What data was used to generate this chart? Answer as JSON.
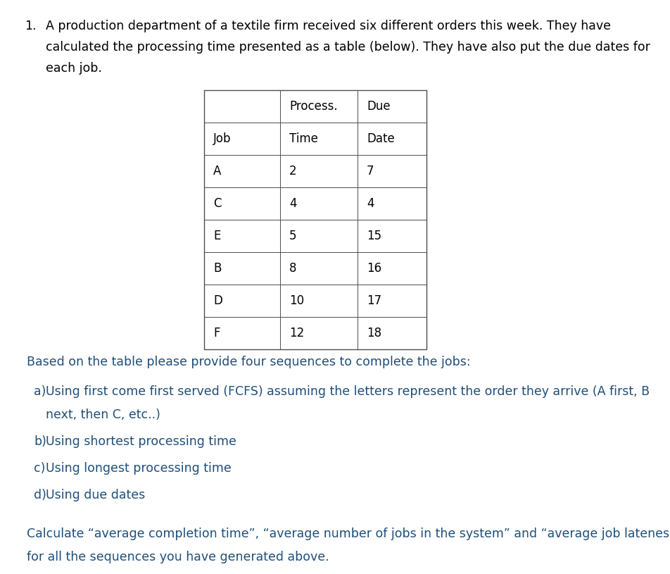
{
  "background_color": "#ffffff",
  "text_color_black": "#000000",
  "text_color_blue": "#1F4E79",
  "figsize": [
    9.52,
    8.15
  ],
  "dpi": 100,
  "number_prefix": "1.",
  "para1_line1": "A production department of a textile firm received six different orders this week. They have",
  "para1_line2": "calculated the processing time presented as a table (below). They have also put the due dates for",
  "para1_line3": "each job.",
  "table_headers_row1": [
    "",
    "Process.",
    "Due"
  ],
  "table_headers_row2": [
    "Job",
    "Time",
    "Date"
  ],
  "table_data": [
    [
      "A",
      "2",
      "7"
    ],
    [
      "C",
      "4",
      "4"
    ],
    [
      "E",
      "5",
      "15"
    ],
    [
      "B",
      "8",
      "16"
    ],
    [
      "D",
      "10",
      "17"
    ],
    [
      "F",
      "12",
      "18"
    ]
  ],
  "para2": "Based on the table please provide four sequences to complete the jobs:",
  "item_a1": "a)   Using first come first served (FCFS) assuming the letters represent the order they arrive (A first, B",
  "item_a2": "      next, then C, etc..)",
  "item_b": "b)   Using shortest processing time",
  "item_c": "c)   Using longest processing time",
  "item_d": "d)   Using due dates",
  "para3_line1": "Calculate “average completion time”, “average number of jobs in the system” and “average job lateness”",
  "para3_line2": "for all the sequences you have generated above.",
  "font_size_body": 12.5,
  "font_size_table": 12.0
}
